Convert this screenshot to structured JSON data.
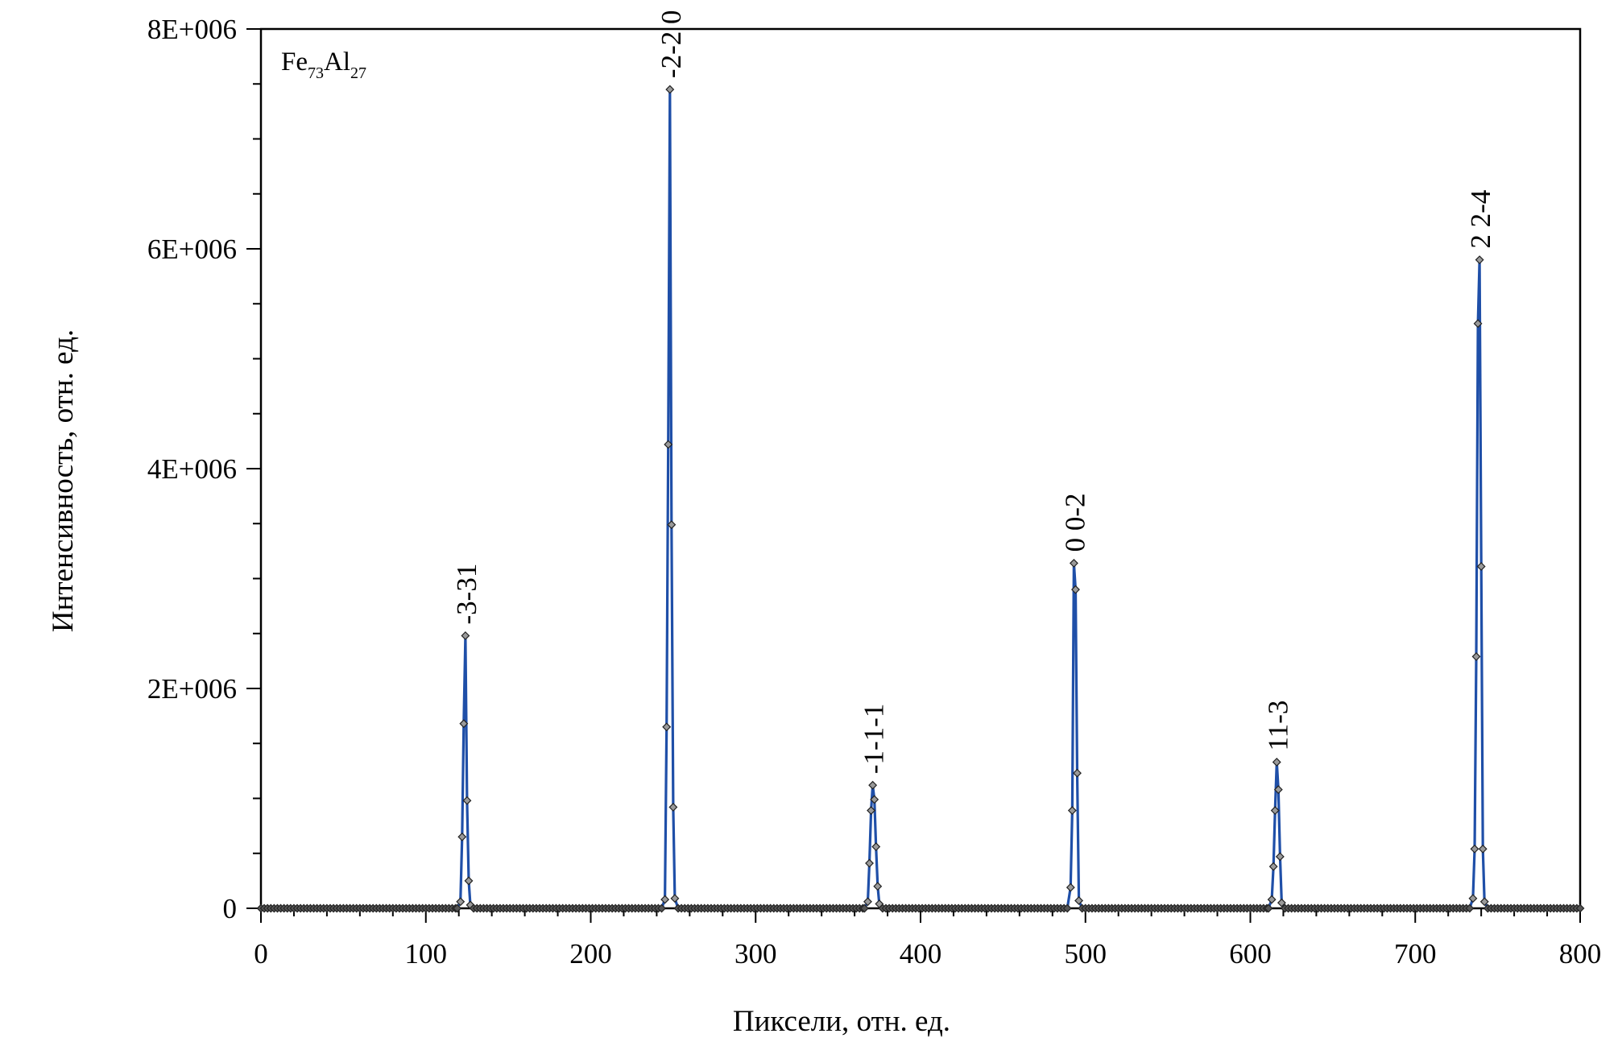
{
  "chart_data": {
    "type": "line",
    "sample_label": {
      "base1": "Fe",
      "sub1": "73",
      "base2": "Al",
      "sub2": "27"
    },
    "xlabel": "Пиксели, отн. ед.",
    "ylabel": "Интенсивность, отн. ед.",
    "xlim": [
      0,
      800
    ],
    "ylim": [
      0,
      8000000
    ],
    "x_ticks": [
      0,
      100,
      200,
      300,
      400,
      500,
      600,
      700,
      800
    ],
    "x_tick_labels": [
      "0",
      "100",
      "200",
      "300",
      "400",
      "500",
      "600",
      "700",
      "800"
    ],
    "y_ticks": [
      0,
      2000000,
      4000000,
      6000000,
      8000000
    ],
    "y_tick_labels": [
      "0",
      "2E+006",
      "4E+006",
      "6E+006",
      "8E+006"
    ],
    "grid": false,
    "line_color": "#1f4fa8",
    "marker_color": "#555555",
    "series": [
      {
        "peaks": [
          {
            "label": "-3-31",
            "points": [
              [
                119,
                0
              ],
              [
                121,
                60000
              ],
              [
                122,
                650000
              ],
              [
                123,
                1680000
              ],
              [
                124,
                2480000
              ],
              [
                125,
                980000
              ],
              [
                126,
                250000
              ],
              [
                127,
                30000
              ],
              [
                129,
                0
              ]
            ]
          },
          {
            "label": "-2-2 0",
            "points": [
              [
                243,
                0
              ],
              [
                245,
                80000
              ],
              [
                246,
                1650000
              ],
              [
                247,
                4220000
              ],
              [
                248,
                7450000
              ],
              [
                249,
                3490000
              ],
              [
                250,
                920000
              ],
              [
                251,
                90000
              ],
              [
                253,
                0
              ]
            ]
          },
          {
            "label": "-1-1-1",
            "points": [
              [
                366,
                0
              ],
              [
                368,
                60000
              ],
              [
                369,
                410000
              ],
              [
                370,
                890000
              ],
              [
                371,
                1120000
              ],
              [
                372,
                990000
              ],
              [
                373,
                560000
              ],
              [
                374,
                200000
              ],
              [
                375,
                40000
              ],
              [
                377,
                0
              ]
            ]
          },
          {
            "label": "0 0-2",
            "points": [
              [
                489,
                0
              ],
              [
                491,
                190000
              ],
              [
                492,
                890000
              ],
              [
                493,
                3140000
              ],
              [
                494,
                2900000
              ],
              [
                495,
                1230000
              ],
              [
                496,
                70000
              ],
              [
                498,
                0
              ]
            ]
          },
          {
            "label": "11-3",
            "points": [
              [
                611,
                0
              ],
              [
                613,
                80000
              ],
              [
                614,
                380000
              ],
              [
                615,
                890000
              ],
              [
                616,
                1330000
              ],
              [
                617,
                1080000
              ],
              [
                618,
                470000
              ],
              [
                619,
                50000
              ],
              [
                621,
                0
              ]
            ]
          },
          {
            "label": "2 2-4",
            "points": [
              [
                733,
                0
              ],
              [
                735,
                90000
              ],
              [
                736,
                540000
              ],
              [
                737,
                2290000
              ],
              [
                738,
                5320000
              ],
              [
                739,
                5900000
              ],
              [
                740,
                3110000
              ],
              [
                741,
                540000
              ],
              [
                742,
                60000
              ],
              [
                744,
                0
              ]
            ]
          }
        ]
      }
    ]
  }
}
